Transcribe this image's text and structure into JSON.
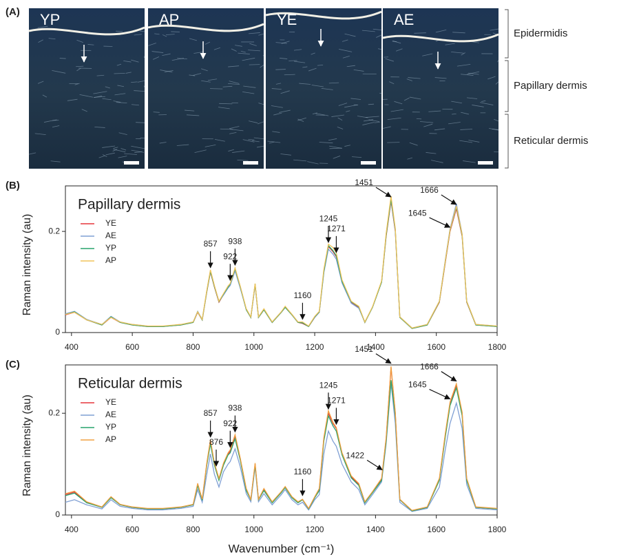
{
  "panel_a": {
    "label": "(A)",
    "images": [
      "YP",
      "AP",
      "YE",
      "AE"
    ],
    "layers": [
      "Epidermidis",
      "Papillary dermis",
      "Reticular dermis"
    ]
  },
  "chart_data": [
    {
      "type": "line",
      "label": "(B)",
      "title": "Papillary dermis",
      "y_label": "Raman intensity (au)",
      "x": [
        380,
        410,
        450,
        500,
        530,
        560,
        600,
        650,
        700,
        760,
        800,
        815,
        830,
        845,
        857,
        870,
        885,
        900,
        915,
        922,
        938,
        955,
        975,
        990,
        1004,
        1015,
        1033,
        1060,
        1090,
        1103,
        1125,
        1145,
        1160,
        1180,
        1200,
        1215,
        1230,
        1245,
        1260,
        1271,
        1290,
        1320,
        1345,
        1365,
        1390,
        1420,
        1435,
        1451,
        1465,
        1480,
        1520,
        1570,
        1610,
        1630,
        1645,
        1666,
        1685,
        1700,
        1730,
        1800
      ],
      "xlim": [
        380,
        1800
      ],
      "xticks": [
        400,
        600,
        800,
        1000,
        1200,
        1400,
        1600,
        1800
      ],
      "ylim": [
        0,
        0.29
      ],
      "yticks": [
        0,
        0.2
      ],
      "series": [
        {
          "name": "YE",
          "color": "#e5343a",
          "values": [
            0.035,
            0.04,
            0.025,
            0.015,
            0.03,
            0.02,
            0.015,
            0.012,
            0.012,
            0.015,
            0.02,
            0.04,
            0.025,
            0.08,
            0.12,
            0.09,
            0.06,
            0.075,
            0.09,
            0.095,
            0.125,
            0.09,
            0.045,
            0.03,
            0.095,
            0.03,
            0.045,
            0.02,
            0.04,
            0.05,
            0.035,
            0.02,
            0.018,
            0.012,
            0.03,
            0.04,
            0.12,
            0.17,
            0.16,
            0.15,
            0.1,
            0.06,
            0.05,
            0.02,
            0.05,
            0.1,
            0.19,
            0.26,
            0.2,
            0.03,
            0.008,
            0.015,
            0.06,
            0.14,
            0.2,
            0.245,
            0.19,
            0.06,
            0.015,
            0.012
          ]
        },
        {
          "name": "AE",
          "color": "#7f9fd4",
          "values": [
            0.037,
            0.042,
            0.026,
            0.016,
            0.032,
            0.021,
            0.016,
            0.013,
            0.012,
            0.016,
            0.021,
            0.042,
            0.026,
            0.082,
            0.122,
            0.092,
            0.062,
            0.074,
            0.088,
            0.093,
            0.122,
            0.088,
            0.046,
            0.031,
            0.094,
            0.031,
            0.046,
            0.021,
            0.041,
            0.05,
            0.036,
            0.021,
            0.02,
            0.013,
            0.03,
            0.04,
            0.118,
            0.165,
            0.155,
            0.145,
            0.098,
            0.058,
            0.048,
            0.021,
            0.05,
            0.1,
            0.195,
            0.262,
            0.202,
            0.031,
            0.009,
            0.016,
            0.062,
            0.145,
            0.205,
            0.255,
            0.195,
            0.062,
            0.016,
            0.013
          ]
        },
        {
          "name": "YP",
          "color": "#27a36b",
          "values": [
            0.036,
            0.041,
            0.025,
            0.015,
            0.031,
            0.02,
            0.015,
            0.012,
            0.012,
            0.015,
            0.02,
            0.041,
            0.025,
            0.081,
            0.121,
            0.091,
            0.061,
            0.076,
            0.09,
            0.096,
            0.126,
            0.091,
            0.045,
            0.03,
            0.096,
            0.03,
            0.045,
            0.02,
            0.04,
            0.05,
            0.035,
            0.02,
            0.019,
            0.012,
            0.031,
            0.041,
            0.121,
            0.172,
            0.162,
            0.152,
            0.101,
            0.061,
            0.051,
            0.02,
            0.05,
            0.1,
            0.192,
            0.264,
            0.204,
            0.03,
            0.008,
            0.015,
            0.061,
            0.142,
            0.202,
            0.248,
            0.192,
            0.061,
            0.015,
            0.012
          ]
        },
        {
          "name": "AP",
          "color": "#f0c45a",
          "values": [
            0.036,
            0.04,
            0.025,
            0.016,
            0.03,
            0.021,
            0.016,
            0.013,
            0.013,
            0.016,
            0.021,
            0.041,
            0.026,
            0.083,
            0.124,
            0.093,
            0.062,
            0.077,
            0.092,
            0.097,
            0.128,
            0.092,
            0.047,
            0.031,
            0.097,
            0.031,
            0.047,
            0.021,
            0.041,
            0.052,
            0.036,
            0.021,
            0.021,
            0.013,
            0.032,
            0.042,
            0.125,
            0.175,
            0.168,
            0.158,
            0.104,
            0.062,
            0.052,
            0.021,
            0.051,
            0.102,
            0.196,
            0.27,
            0.206,
            0.031,
            0.009,
            0.016,
            0.062,
            0.143,
            0.203,
            0.25,
            0.194,
            0.062,
            0.016,
            0.013
          ]
        }
      ],
      "annotations": [
        857,
        922,
        938,
        1160,
        1245,
        1271,
        1451,
        1645,
        1666
      ]
    },
    {
      "type": "line",
      "label": "(C)",
      "title": "Reticular dermis",
      "y_label": "Raman intensity (au)",
      "x_label": "Wavenumber (cm⁻¹)",
      "x": [
        380,
        410,
        450,
        500,
        530,
        560,
        600,
        650,
        700,
        760,
        800,
        815,
        830,
        845,
        857,
        870,
        885,
        900,
        915,
        922,
        938,
        955,
        975,
        990,
        1004,
        1015,
        1033,
        1060,
        1090,
        1103,
        1125,
        1145,
        1160,
        1180,
        1200,
        1215,
        1230,
        1245,
        1260,
        1271,
        1290,
        1320,
        1345,
        1365,
        1390,
        1420,
        1435,
        1451,
        1465,
        1480,
        1520,
        1570,
        1610,
        1630,
        1645,
        1666,
        1685,
        1700,
        1730,
        1800
      ],
      "xlim": [
        380,
        1800
      ],
      "xticks": [
        400,
        600,
        800,
        1000,
        1200,
        1400,
        1600,
        1800
      ],
      "ylim": [
        0,
        0.295
      ],
      "yticks": [
        0,
        0.2
      ],
      "series": [
        {
          "name": "YE",
          "color": "#e5343a",
          "values": [
            0.04,
            0.045,
            0.025,
            0.015,
            0.035,
            0.02,
            0.015,
            0.012,
            0.012,
            0.015,
            0.02,
            0.06,
            0.03,
            0.1,
            0.145,
            0.1,
            0.07,
            0.1,
            0.12,
            0.125,
            0.155,
            0.11,
            0.05,
            0.03,
            0.1,
            0.03,
            0.05,
            0.025,
            0.045,
            0.055,
            0.035,
            0.025,
            0.03,
            0.012,
            0.035,
            0.05,
            0.15,
            0.2,
            0.18,
            0.17,
            0.12,
            0.075,
            0.06,
            0.025,
            0.045,
            0.07,
            0.15,
            0.29,
            0.2,
            0.03,
            0.008,
            0.015,
            0.07,
            0.16,
            0.22,
            0.255,
            0.2,
            0.07,
            0.015,
            0.012
          ]
        },
        {
          "name": "AE",
          "color": "#7f9fd4",
          "values": [
            0.025,
            0.03,
            0.02,
            0.012,
            0.03,
            0.017,
            0.013,
            0.01,
            0.01,
            0.013,
            0.017,
            0.05,
            0.025,
            0.08,
            0.12,
            0.08,
            0.055,
            0.085,
            0.1,
            0.105,
            0.13,
            0.095,
            0.042,
            0.026,
            0.095,
            0.026,
            0.042,
            0.02,
            0.04,
            0.05,
            0.03,
            0.02,
            0.025,
            0.01,
            0.03,
            0.04,
            0.12,
            0.165,
            0.145,
            0.135,
            0.1,
            0.065,
            0.05,
            0.02,
            0.04,
            0.065,
            0.14,
            0.26,
            0.18,
            0.025,
            0.007,
            0.013,
            0.055,
            0.13,
            0.18,
            0.22,
            0.17,
            0.06,
            0.013,
            0.01
          ]
        },
        {
          "name": "YP",
          "color": "#27a36b",
          "values": [
            0.038,
            0.043,
            0.024,
            0.015,
            0.034,
            0.02,
            0.015,
            0.012,
            0.012,
            0.015,
            0.02,
            0.058,
            0.029,
            0.098,
            0.14,
            0.098,
            0.068,
            0.098,
            0.118,
            0.122,
            0.15,
            0.108,
            0.048,
            0.03,
            0.098,
            0.03,
            0.048,
            0.024,
            0.044,
            0.054,
            0.034,
            0.024,
            0.03,
            0.012,
            0.034,
            0.048,
            0.145,
            0.195,
            0.175,
            0.165,
            0.118,
            0.073,
            0.058,
            0.024,
            0.044,
            0.068,
            0.145,
            0.265,
            0.195,
            0.03,
            0.008,
            0.015,
            0.068,
            0.155,
            0.215,
            0.25,
            0.195,
            0.068,
            0.015,
            0.012
          ]
        },
        {
          "name": "AP",
          "color": "#f0a040",
          "values": [
            0.042,
            0.047,
            0.026,
            0.016,
            0.036,
            0.021,
            0.016,
            0.013,
            0.013,
            0.016,
            0.021,
            0.062,
            0.031,
            0.102,
            0.148,
            0.102,
            0.072,
            0.102,
            0.122,
            0.128,
            0.158,
            0.112,
            0.052,
            0.031,
            0.102,
            0.031,
            0.052,
            0.026,
            0.046,
            0.056,
            0.036,
            0.026,
            0.031,
            0.013,
            0.036,
            0.052,
            0.152,
            0.205,
            0.182,
            0.172,
            0.122,
            0.077,
            0.062,
            0.026,
            0.046,
            0.072,
            0.152,
            0.292,
            0.202,
            0.031,
            0.009,
            0.016,
            0.072,
            0.162,
            0.222,
            0.258,
            0.202,
            0.072,
            0.016,
            0.013
          ]
        }
      ],
      "annotations": [
        857,
        876,
        922,
        938,
        1160,
        1245,
        1271,
        1422,
        1451,
        1645,
        1666
      ]
    }
  ]
}
